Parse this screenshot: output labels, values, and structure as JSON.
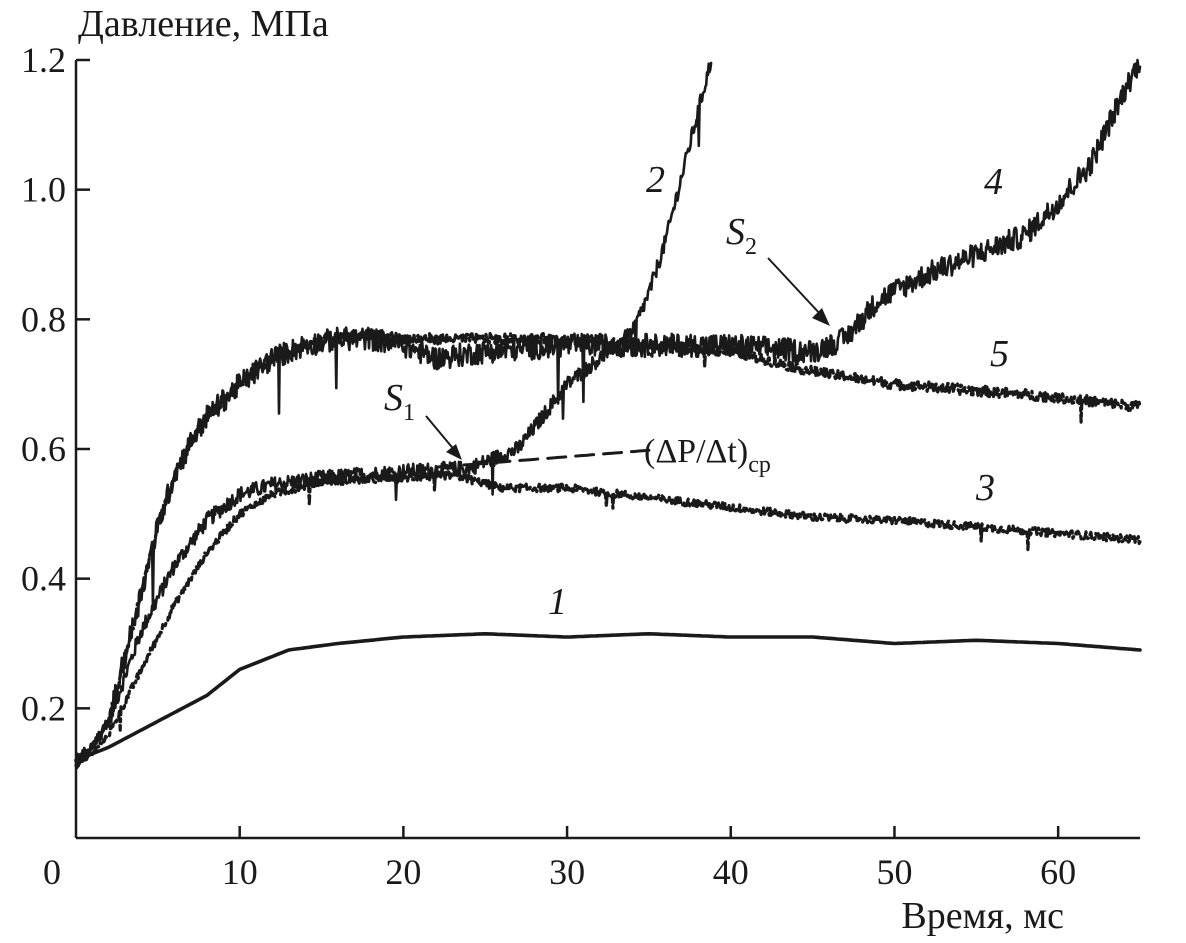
{
  "chart_data": {
    "type": "line",
    "ylabel": "Давление, МПа",
    "xlabel": "Время, мс",
    "xlim": [
      0,
      65
    ],
    "ylim": [
      0,
      1.2
    ],
    "x_ticks": [
      0,
      10,
      20,
      30,
      40,
      50,
      60
    ],
    "x_tick_labels": [
      "0",
      "10",
      "20",
      "30",
      "40",
      "50",
      "60"
    ],
    "y_ticks": [
      0.2,
      0.4,
      0.6,
      0.8,
      1.0,
      1.2
    ],
    "y_tick_labels": [
      "0.2",
      "0.4",
      "0.6",
      "0.8",
      "1.0",
      "1.2"
    ],
    "grid": false,
    "series": [
      {
        "name": "1",
        "style": "solid",
        "noise": 0,
        "x": [
          0,
          2,
          5,
          8,
          10,
          13,
          16,
          20,
          25,
          30,
          35,
          40,
          45,
          50,
          55,
          60,
          65
        ],
        "y": [
          0.12,
          0.14,
          0.18,
          0.22,
          0.26,
          0.29,
          0.3,
          0.31,
          0.315,
          0.31,
          0.315,
          0.31,
          0.31,
          0.3,
          0.305,
          0.3,
          0.29
        ]
      },
      {
        "name": "2",
        "style": "solid",
        "noise": 0.012,
        "x": [
          0,
          1,
          2,
          4,
          6,
          8,
          10,
          12,
          15,
          20,
          24,
          27,
          30,
          33,
          34,
          35,
          36,
          37,
          38,
          38.5,
          38.8
        ],
        "y": [
          0.11,
          0.14,
          0.18,
          0.32,
          0.42,
          0.49,
          0.53,
          0.545,
          0.555,
          0.565,
          0.57,
          0.6,
          0.7,
          0.76,
          0.78,
          0.84,
          0.92,
          1.02,
          1.12,
          1.17,
          1.2
        ]
      },
      {
        "name": "3",
        "style": "dashdot",
        "noise": 0.006,
        "x": [
          0,
          1,
          2,
          4,
          6,
          8,
          10,
          12,
          15,
          20,
          23,
          26,
          30,
          35,
          40,
          45,
          50,
          55,
          60,
          65
        ],
        "y": [
          0.11,
          0.13,
          0.16,
          0.26,
          0.36,
          0.44,
          0.5,
          0.53,
          0.55,
          0.555,
          0.56,
          0.54,
          0.54,
          0.525,
          0.51,
          0.495,
          0.49,
          0.48,
          0.47,
          0.46
        ]
      },
      {
        "name": "4",
        "style": "solid",
        "noise": 0.018,
        "x": [
          0,
          1,
          2,
          3,
          4,
          5,
          6,
          7,
          8,
          10,
          12,
          14,
          16,
          18,
          20,
          22,
          25,
          30,
          35,
          40,
          45,
          47,
          49,
          52,
          55,
          58,
          60,
          62,
          64,
          65
        ],
        "y": [
          0.12,
          0.14,
          0.18,
          0.28,
          0.38,
          0.48,
          0.56,
          0.61,
          0.65,
          0.7,
          0.74,
          0.76,
          0.77,
          0.77,
          0.76,
          0.74,
          0.75,
          0.76,
          0.76,
          0.76,
          0.75,
          0.77,
          0.83,
          0.87,
          0.9,
          0.93,
          0.98,
          1.04,
          1.15,
          1.2
        ]
      },
      {
        "name": "5",
        "style": "dashdot",
        "noise": 0.008,
        "x": [
          0,
          1,
          2,
          3,
          4,
          5,
          6,
          7,
          8,
          10,
          12,
          14,
          16,
          18,
          20,
          25,
          30,
          35,
          40,
          45,
          50,
          55,
          60,
          65
        ],
        "y": [
          0.12,
          0.14,
          0.18,
          0.28,
          0.38,
          0.48,
          0.56,
          0.61,
          0.65,
          0.7,
          0.74,
          0.76,
          0.775,
          0.775,
          0.77,
          0.77,
          0.77,
          0.76,
          0.75,
          0.72,
          0.7,
          0.69,
          0.68,
          0.665
        ]
      },
      {
        "name": "(ΔP/Δt)ср",
        "style": "dashed",
        "noise": 0,
        "x": [
          22,
          30,
          35
        ],
        "y": [
          0.572,
          0.588,
          0.598
        ]
      }
    ],
    "annotations": [
      {
        "text": "S",
        "sub": "1",
        "target_x": 23,
        "target_y": 0.575
      },
      {
        "text": "S",
        "sub": "2",
        "target_x": 46.2,
        "target_y": 0.765
      }
    ],
    "curve_labels": [
      "1",
      "2",
      "3",
      "4",
      "5"
    ],
    "formula_label": {
      "main": "(ΔP/Δt)",
      "sub": "ср"
    }
  },
  "colors": {
    "ink": "#1a1a1a",
    "background": "#ffffff"
  }
}
